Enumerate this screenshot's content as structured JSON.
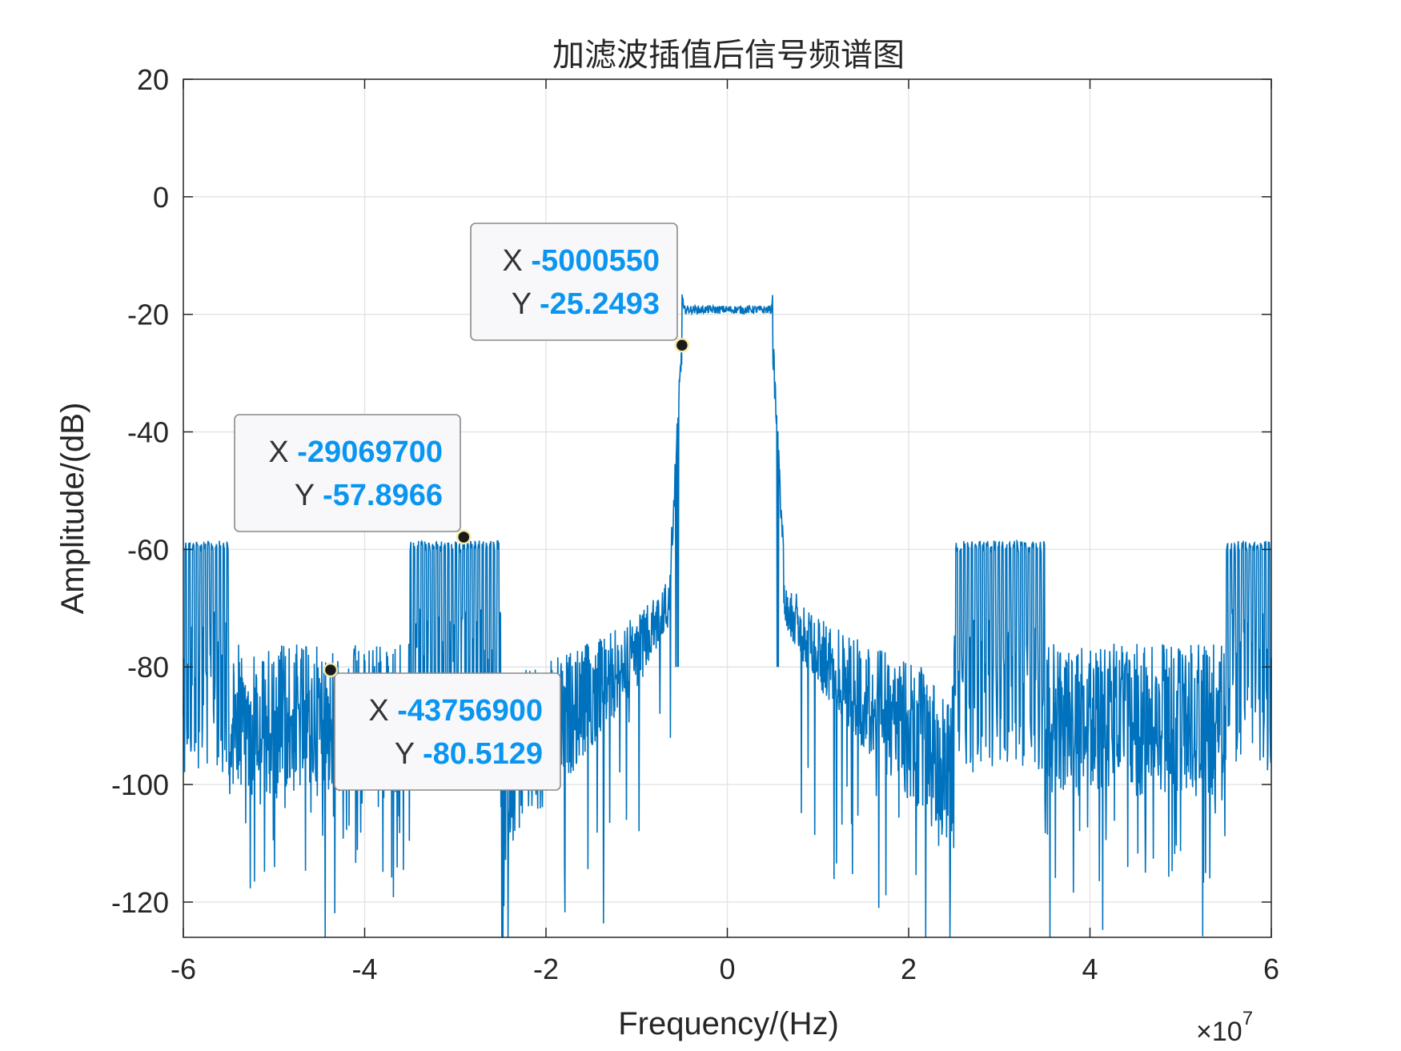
{
  "chart_data": {
    "type": "line",
    "title": "加滤波插值后信号频谱图",
    "xlabel": "Frequency/(Hz)",
    "ylabel": "Amplitude/(dB)",
    "x_exponent_label": "×10",
    "x_exponent_power": "7",
    "xlim": [
      -60000000,
      60000000
    ],
    "ylim": [
      -126,
      20
    ],
    "xticks": [
      -6,
      -4,
      -2,
      0,
      2,
      4,
      6
    ],
    "xtick_labels": [
      "-6",
      "-4",
      "-2",
      "0",
      "2",
      "4",
      "6"
    ],
    "yticks": [
      20,
      0,
      -20,
      -40,
      -60,
      -80,
      -100,
      -120
    ],
    "ytick_labels": [
      "20",
      "0",
      "-20",
      "-40",
      "-60",
      "-80",
      "-100",
      "-120"
    ],
    "grid": true,
    "line_color": "#0072BD",
    "series": [
      {
        "description_segments": [
          {
            "x_range_hz": [
              -60000000,
              -55000000
            ],
            "kind": "sideband",
            "top_db": -58,
            "bottom_db": -95
          },
          {
            "x_range_hz": [
              -55000000,
              -35000000
            ],
            "kind": "noise_floor",
            "top_db": -76,
            "bottom_db": -122
          },
          {
            "x_range_hz": [
              -35000000,
              -25000000
            ],
            "kind": "sideband",
            "top_db": -58,
            "bottom_db": -100
          },
          {
            "x_range_hz": [
              -25000000,
              -5000000
            ],
            "kind": "rising_skirt",
            "start_top_db": -82,
            "end_top_db": -60
          },
          {
            "x_range_hz": [
              -5000000,
              5000000
            ],
            "kind": "passband",
            "level_db": -19
          },
          {
            "x_range_hz": [
              5000000,
              25000000
            ],
            "kind": "falling_skirt",
            "start_top_db": -60,
            "end_top_db": -82
          },
          {
            "x_range_hz": [
              25000000,
              35000000
            ],
            "kind": "sideband",
            "top_db": -58,
            "bottom_db": -100
          },
          {
            "x_range_hz": [
              35000000,
              55000000
            ],
            "kind": "noise_floor",
            "top_db": -76,
            "bottom_db": -122
          },
          {
            "x_range_hz": [
              55000000,
              60000000
            ],
            "kind": "sideband",
            "top_db": -58,
            "bottom_db": -95
          }
        ]
      }
    ],
    "datatips": [
      {
        "x": -5000550,
        "y": -25.2493,
        "x_label": "X",
        "y_label": "Y",
        "x_text": "-5000550",
        "y_text": "-25.2493"
      },
      {
        "x": -29069700,
        "y": -57.8966,
        "x_label": "X",
        "y_label": "Y",
        "x_text": "-29069700",
        "y_text": "-57.8966"
      },
      {
        "x": -43756900,
        "y": -80.5129,
        "x_label": "X",
        "y_label": "Y",
        "x_text": "-43756900",
        "y_text": "-80.5129"
      }
    ]
  }
}
